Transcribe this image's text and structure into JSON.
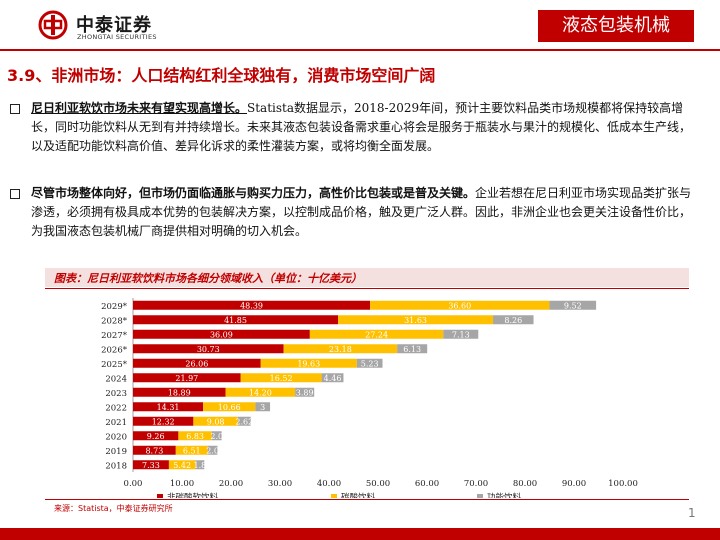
{
  "header": {
    "company_cn": "中泰证券",
    "company_en": "ZHONGTAI SECURITIES",
    "section_tag": "液态包装机械"
  },
  "section": {
    "title": "3.9、非洲市场：人口结构红利全球独有，消费市场空间广阔"
  },
  "bullets": [
    {
      "lead": "尼日利亚软饮市场未来有望实现高增长。",
      "body": "Statista数据显示，2018-2029年间，预计主要饮料品类市场规模都将保持较高增长，同时功能饮料从无到有并持续增长。未来其液态包装设备需求重心将会是服务于瓶装水与果汁的规模化、低成本生产线，以及适配功能饮料高价值、差异化诉求的柔性灌装方案，或将均衡全面发展。"
    },
    {
      "lead": "尽管市场整体向好，但市场仍面临通胀与购买力压力，高性价比包装或是普及关键。",
      "body": "企业若想在尼日利亚市场实现品类扩张与渗透，必须拥有极具成本优势的包装解决方案，以控制成品价格，触及更广泛人群。因此，非洲企业也会更关注设备性价比，为我国液态包装机械厂商提供相对明确的切入机会。"
    }
  ],
  "chart_title": "图表：尼日利亚软饮料市场各细分领域收入（单位：十亿美元）",
  "source": "来源：Statista，中泰证券研究所",
  "page_number": "1",
  "colors": {
    "accent": "#c00000",
    "series1": "#c00000",
    "series2": "#ffc000",
    "series3": "#a6a6a6"
  },
  "chart_data": {
    "type": "bar",
    "orientation": "horizontal",
    "stacked": true,
    "categories": [
      "2029*",
      "2028*",
      "2027*",
      "2026*",
      "2025*",
      "2024",
      "2023",
      "2022",
      "2021",
      "2020",
      "2019",
      "2018"
    ],
    "series": [
      {
        "name": "非碳酸软饮料",
        "values": [
          48.39,
          41.85,
          36.09,
          30.73,
          26.06,
          21.97,
          18.89,
          14.31,
          12.32,
          9.26,
          8.73,
          7.33
        ]
      },
      {
        "name": "碳酸饮料",
        "values": [
          36.6,
          31.63,
          27.24,
          23.18,
          19.63,
          16.52,
          14.2,
          10.66,
          9.08,
          6.83,
          6.51,
          5.42
        ]
      },
      {
        "name": "功能饮料",
        "values": [
          9.52,
          8.26,
          7.13,
          6.13,
          5.23,
          4.46,
          3.89,
          3.0,
          2.62,
          2.0,
          2.0,
          1.8
        ]
      }
    ],
    "labels": [
      [
        "48.39",
        "41.85",
        "36.09",
        "30.73",
        "26.06",
        "21.97",
        "18.89",
        "14.31",
        "12.32",
        "9.26",
        "8.73",
        "7.33"
      ],
      [
        "36.60",
        "31.63",
        "27.24",
        "23.18",
        "19.63",
        "16.52",
        "14.20",
        "10.66",
        "9.08",
        "6.83",
        "6.51",
        "5.42"
      ],
      [
        "9.52",
        "8.26",
        "7.13",
        "6.13",
        "5.23",
        "4.46",
        "3.89",
        "3",
        "2.62",
        "2.0",
        "2.0",
        "1.8"
      ]
    ],
    "x_ticks": [
      "0.00",
      "10.00",
      "20.00",
      "30.00",
      "40.00",
      "50.00",
      "60.00",
      "70.00",
      "80.00",
      "90.00",
      "100.00"
    ],
    "xlim": [
      0,
      100
    ],
    "title": "尼日利亚软饮料市场各细分领域收入（单位：十亿美元）",
    "legend_position": "bottom"
  }
}
